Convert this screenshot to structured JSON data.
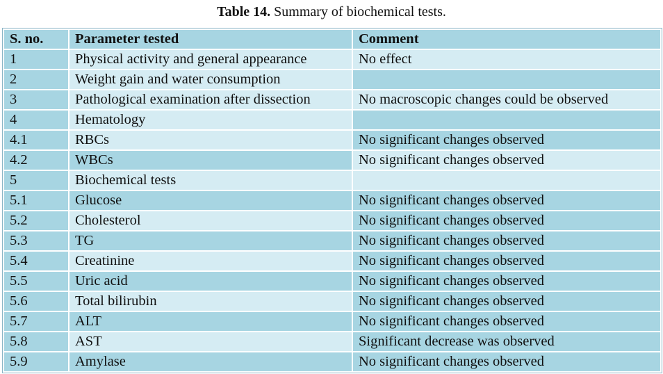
{
  "caption": {
    "label": "Table 14.",
    "text": "Summary of biochemical tests."
  },
  "table": {
    "headers": [
      "S. no.",
      "Parameter tested",
      "Comment"
    ],
    "rows": [
      {
        "no": "1",
        "param": "Physical activity and general appearance",
        "comment": "No effect"
      },
      {
        "no": "2",
        "param": "Weight gain and water consumption",
        "comment": ""
      },
      {
        "no": "3",
        "param": "Pathological examination after dissection",
        "comment": "No macroscopic changes could be observed"
      },
      {
        "no": "4",
        "param": "Hematology",
        "comment": ""
      },
      {
        "no": "4.1",
        "param": "RBCs",
        "comment": "No significant changes observed"
      },
      {
        "no": "4.2",
        "param": "WBCs",
        "comment": "No significant changes observed"
      },
      {
        "no": "5",
        "param": "Biochemical tests",
        "comment": ""
      },
      {
        "no": "5.1",
        "param": "Glucose",
        "comment": "No significant changes observed"
      },
      {
        "no": "5.2",
        "param": "Cholesterol",
        "comment": "No significant changes observed"
      },
      {
        "no": "5.3",
        "param": "TG",
        "comment": "No significant changes observed"
      },
      {
        "no": "5.4",
        "param": "Creatinine",
        "comment": "No significant changes observed"
      },
      {
        "no": "5.5",
        "param": "Uric acid",
        "comment": "No significant changes observed"
      },
      {
        "no": "5.6",
        "param": "Total bilirubin",
        "comment": "No significant changes observed"
      },
      {
        "no": "5.7",
        "param": "ALT",
        "comment": "No significant changes observed"
      },
      {
        "no": "5.8",
        "param": "AST",
        "comment": "Significant decrease was observed"
      },
      {
        "no": "5.9",
        "param": "Amylase",
        "comment": "No significant changes observed"
      }
    ]
  },
  "colors": {
    "cell_dark": "#a7d5e2",
    "cell_light": "#d5ecf3"
  }
}
